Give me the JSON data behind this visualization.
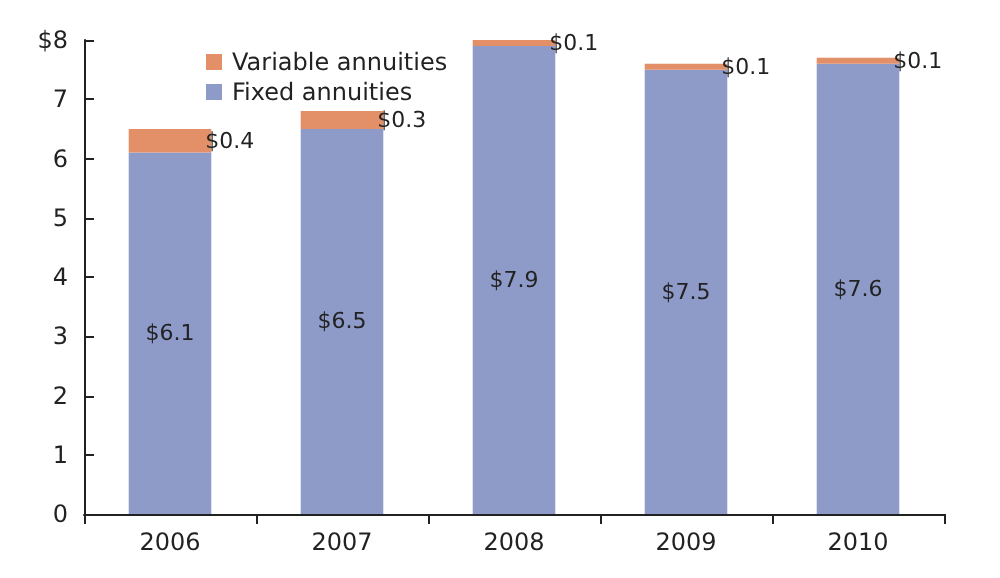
{
  "chart_data": {
    "type": "bar",
    "stacked": true,
    "categories": [
      "2006",
      "2007",
      "2008",
      "2009",
      "2010"
    ],
    "series": [
      {
        "name": "Fixed annuities",
        "color": "#8e9ac8",
        "values": [
          6.1,
          6.5,
          7.9,
          7.5,
          7.6
        ],
        "value_labels": [
          "$6.1",
          "$6.5",
          "$7.9",
          "$7.5",
          "$7.6"
        ]
      },
      {
        "name": "Variable annuities",
        "color": "#e38f68",
        "values": [
          0.4,
          0.3,
          0.1,
          0.1,
          0.1
        ],
        "value_labels": [
          "$0.4",
          "$0.3",
          "$0.1",
          "$0.1",
          "$0.1"
        ]
      }
    ],
    "ylim": [
      0,
      8
    ],
    "yticks": [
      0,
      1,
      2,
      3,
      4,
      5,
      6,
      7,
      {
        "value": 8,
        "label": "$8"
      }
    ],
    "grid": false,
    "legend": "top left"
  }
}
